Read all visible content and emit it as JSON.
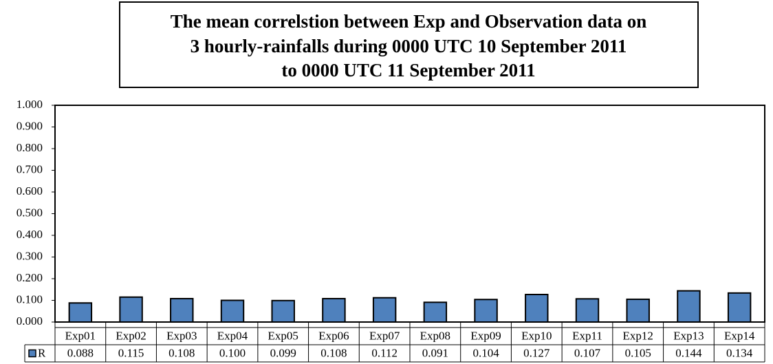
{
  "chart_data": {
    "type": "bar",
    "title": [
      "The mean correlstion between Exp and Observation data on",
      "3 hourly-rainfalls during 0000 UTC 10 September 2011",
      "to 0000 UTC 11 September 2011"
    ],
    "categories": [
      "Exp01",
      "Exp02",
      "Exp03",
      "Exp04",
      "Exp05",
      "Exp06",
      "Exp07",
      "Exp08",
      "Exp09",
      "Exp10",
      "Exp11",
      "Exp12",
      "Exp13",
      "Exp14"
    ],
    "series": [
      {
        "name": "R",
        "color": "#4f81bd",
        "values": [
          0.088,
          0.115,
          0.108,
          0.1,
          0.099,
          0.108,
          0.112,
          0.091,
          0.104,
          0.127,
          0.107,
          0.105,
          0.144,
          0.134
        ],
        "value_labels": [
          "0.088",
          "0.115",
          "0.108",
          "0.100",
          "0.099",
          "0.108",
          "0.112",
          "0.091",
          "0.104",
          "0.127",
          "0.107",
          "0.105",
          "0.144",
          "0.134"
        ]
      }
    ],
    "ylim": [
      0,
      1
    ],
    "yticks": [
      {
        "value": 0,
        "label": "0.000"
      },
      {
        "value": 0.1,
        "label": "0.100"
      },
      {
        "value": 0.2,
        "label": "0.200"
      },
      {
        "value": 0.3,
        "label": "0.300"
      },
      {
        "value": 0.4,
        "label": "0.400"
      },
      {
        "value": 0.5,
        "label": "0.500"
      },
      {
        "value": 0.6,
        "label": "0.600"
      },
      {
        "value": 0.7,
        "label": "0.700"
      },
      {
        "value": 0.8,
        "label": "0.800"
      },
      {
        "value": 0.9,
        "label": "0.900"
      },
      {
        "value": 1,
        "label": "1.000"
      }
    ],
    "grid": false,
    "data_table": true
  }
}
